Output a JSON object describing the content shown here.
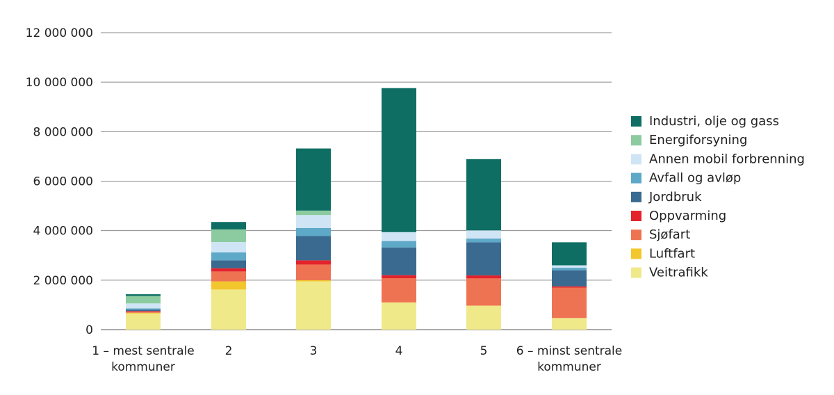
{
  "chart_data": {
    "type": "bar",
    "stacked": true,
    "title": "",
    "xlabel": "",
    "ylabel": "",
    "ylim": [
      0,
      12000000
    ],
    "yticks": [
      0,
      2000000,
      4000000,
      6000000,
      8000000,
      10000000,
      12000000
    ],
    "ytick_labels": [
      "0",
      "2 000 000",
      "4 000 000",
      "6 000 000",
      "8 000 000",
      "10 000 000",
      "12 000 000"
    ],
    "grid": "horizontal",
    "legend_position": "right",
    "categories": [
      [
        "1 – mest sentrale",
        "kommuner"
      ],
      [
        "2"
      ],
      [
        "3"
      ],
      [
        "4"
      ],
      [
        "5"
      ],
      [
        "6 – minst sentrale",
        "kommuner"
      ]
    ],
    "series": [
      {
        "name": "Veitrafikk",
        "color": "#f0e98a",
        "values": [
          650000,
          1620000,
          1950000,
          1100000,
          970000,
          470000
        ]
      },
      {
        "name": "Luftfart",
        "color": "#f2c72e",
        "values": [
          30000,
          330000,
          50000,
          0,
          0,
          0
        ]
      },
      {
        "name": "Sjøfart",
        "color": "#ee7352",
        "values": [
          40000,
          400000,
          630000,
          980000,
          1100000,
          1230000
        ]
      },
      {
        "name": "Oppvarming",
        "color": "#e3222b",
        "values": [
          30000,
          130000,
          170000,
          120000,
          120000,
          50000
        ]
      },
      {
        "name": "Jordbruk",
        "color": "#3a6a90",
        "values": [
          60000,
          320000,
          980000,
          1120000,
          1340000,
          650000
        ]
      },
      {
        "name": "Avfall og avløp",
        "color": "#5ea8c8",
        "values": [
          50000,
          320000,
          330000,
          260000,
          150000,
          100000
        ]
      },
      {
        "name": "Annen mobil forbrenning",
        "color": "#cfe5f6",
        "values": [
          200000,
          420000,
          520000,
          360000,
          330000,
          100000
        ]
      },
      {
        "name": "Energiforsyning",
        "color": "#8ccb9f",
        "values": [
          300000,
          510000,
          180000,
          0,
          0,
          0
        ]
      },
      {
        "name": "Industri, olje og gass",
        "color": "#0e6e63",
        "values": [
          70000,
          300000,
          2510000,
          5820000,
          2880000,
          930000
        ]
      }
    ]
  }
}
